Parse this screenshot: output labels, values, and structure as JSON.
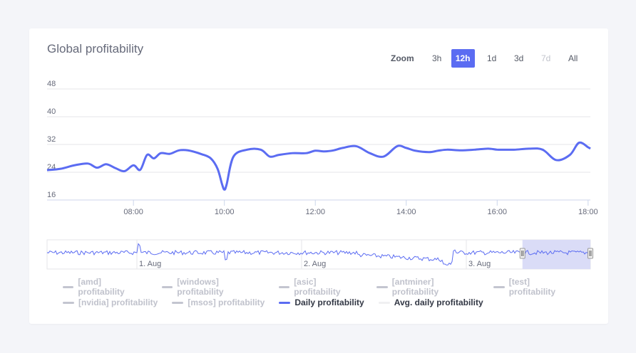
{
  "card": {
    "title": "Global profitability"
  },
  "zoom": {
    "label": "Zoom",
    "buttons": [
      {
        "label": "3h",
        "state": "normal"
      },
      {
        "label": "12h",
        "state": "active"
      },
      {
        "label": "1d",
        "state": "normal"
      },
      {
        "label": "3d",
        "state": "normal"
      },
      {
        "label": "7d",
        "state": "disabled"
      },
      {
        "label": "All",
        "state": "normal"
      }
    ]
  },
  "colors": {
    "line": "#5b6cf2",
    "navigator_fill": "#dadcf7",
    "grid": "#e6e6ea",
    "legend_hidden": "#c3c5d0"
  },
  "legend": [
    {
      "label": "[amd] profitability",
      "visible": false
    },
    {
      "label": "[windows] profitability",
      "visible": false
    },
    {
      "label": "[asic] profitability",
      "visible": false
    },
    {
      "label": "[antminer] profitability",
      "visible": false
    },
    {
      "label": "[test] profitability",
      "visible": false
    },
    {
      "label": "[nvidia] profitability",
      "visible": false
    },
    {
      "label": "[msos] profitability",
      "visible": false
    },
    {
      "label": "Daily profitability",
      "visible": true
    },
    {
      "label": "Avg. daily profitability",
      "visible": true
    }
  ],
  "chart_data": {
    "type": "line",
    "title": "Global profitability",
    "xlabel": "",
    "ylabel": "",
    "ylim": [
      16,
      48
    ],
    "y_ticks": [
      "16",
      "24",
      "32",
      "40",
      "48"
    ],
    "x_ticks": [
      "08:00",
      "10:00",
      "12:00",
      "14:00",
      "16:00",
      "18:00"
    ],
    "x_range_hours": [
      6.1,
      18.05
    ],
    "grid": true,
    "legend_position": "bottom",
    "series": [
      {
        "name": "Daily profitability",
        "x": [
          6.1,
          6.4,
          6.7,
          7.0,
          7.2,
          7.4,
          7.6,
          7.8,
          8.0,
          8.15,
          8.3,
          8.45,
          8.6,
          8.8,
          9.0,
          9.2,
          9.5,
          9.7,
          9.85,
          9.95,
          10.0,
          10.05,
          10.2,
          10.5,
          10.8,
          11.0,
          11.2,
          11.5,
          11.8,
          12.0,
          12.2,
          12.4,
          12.6,
          12.9,
          13.2,
          13.5,
          13.8,
          14.0,
          14.2,
          14.5,
          14.7,
          14.9,
          15.2,
          15.5,
          15.8,
          16.0,
          16.2,
          16.4,
          16.7,
          17.0,
          17.3,
          17.6,
          17.8,
          18.0,
          18.05
        ],
        "y": [
          24.6,
          25.0,
          26.0,
          26.5,
          25.3,
          26.3,
          25.2,
          24.3,
          26.0,
          24.7,
          29.0,
          28.0,
          29.5,
          29.3,
          30.3,
          30.3,
          29.2,
          28.0,
          25.0,
          20.5,
          19.0,
          20.5,
          28.5,
          30.5,
          30.5,
          28.5,
          29.0,
          29.5,
          29.5,
          30.2,
          30.0,
          30.3,
          31.0,
          31.5,
          29.5,
          28.5,
          31.5,
          31.0,
          30.2,
          29.8,
          30.2,
          30.5,
          30.3,
          30.5,
          30.8,
          30.5,
          30.5,
          30.5,
          30.8,
          30.5,
          27.5,
          29.0,
          32.5,
          31.2,
          30.8
        ]
      }
    ],
    "navigator": {
      "labels": [
        "1. Aug",
        "2. Aug",
        "3. Aug"
      ],
      "selection": [
        0.875,
        1.0
      ]
    }
  }
}
